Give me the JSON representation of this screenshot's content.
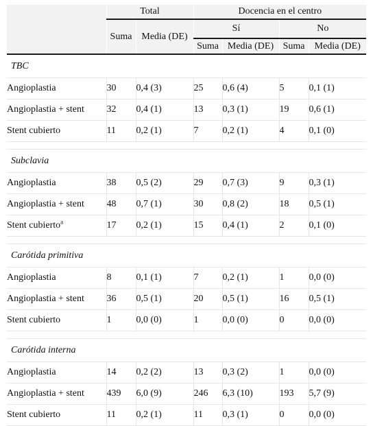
{
  "header": {
    "total": "Total",
    "docencia": "Docencia en el centro",
    "si": "Sí",
    "no": "No",
    "suma": "Suma",
    "media": "Media (DE)"
  },
  "sections": [
    {
      "title": "TBC",
      "rows": [
        {
          "label": "Angioplastia",
          "label_sup": "",
          "total_suma": "30",
          "total_media": "0,4 (3)",
          "si_suma": "25",
          "si_media": "0,6 (4)",
          "no_suma": "5",
          "no_media": "0,1 (1)"
        },
        {
          "label": "Angioplastia + stent",
          "label_sup": "",
          "total_suma": "32",
          "total_media": "0,4 (1)",
          "si_suma": "13",
          "si_media": "0,3 (1)",
          "no_suma": "19",
          "no_media": "0,6 (1)"
        },
        {
          "label": "Stent cubierto",
          "label_sup": "",
          "total_suma": "11",
          "total_media": "0,2 (1)",
          "si_suma": "7",
          "si_media": "0,2 (1)",
          "no_suma": "4",
          "no_media": "0,1 (0)"
        }
      ]
    },
    {
      "title": "Subclavia",
      "rows": [
        {
          "label": "Angioplastia",
          "label_sup": "",
          "total_suma": "38",
          "total_media": "0,5 (2)",
          "si_suma": "29",
          "si_media": "0,7 (3)",
          "no_suma": "9",
          "no_media": "0,3 (1)"
        },
        {
          "label": "Angioplastia + stent",
          "label_sup": "",
          "total_suma": "48",
          "total_media": "0,7 (1)",
          "si_suma": "30",
          "si_media": "0,8 (2)",
          "no_suma": "18",
          "no_media": "0,5 (1)"
        },
        {
          "label": "Stent cubierto",
          "label_sup": "a",
          "total_suma": "17",
          "total_media": "0,2 (1)",
          "si_suma": "15",
          "si_media": "0,4 (1)",
          "no_suma": "2",
          "no_media": "0,1 (0)"
        }
      ]
    },
    {
      "title": "Carótida primitiva",
      "rows": [
        {
          "label": "Angioplastia",
          "label_sup": "",
          "total_suma": "8",
          "total_media": "0,1 (1)",
          "si_suma": "7",
          "si_media": "0,2 (1)",
          "no_suma": "1",
          "no_media": "0,0 (0)"
        },
        {
          "label": "Angioplastia + stent",
          "label_sup": "",
          "total_suma": "36",
          "total_media": "0,5 (1)",
          "si_suma": "20",
          "si_media": "0,5 (1)",
          "no_suma": "16",
          "no_media": "0,5 (1)"
        },
        {
          "label": "Stent cubierto",
          "label_sup": "",
          "total_suma": "1",
          "total_media": "0,0 (0)",
          "si_suma": "1",
          "si_media": "0,0 (0)",
          "no_suma": "0",
          "no_media": "0,0 (0)"
        }
      ]
    },
    {
      "title": "Carótida interna",
      "rows": [
        {
          "label": "Angioplastia",
          "label_sup": "",
          "total_suma": "14",
          "total_media": "0,2 (2)",
          "si_suma": "13",
          "si_media": "0,3 (2)",
          "no_suma": "1",
          "no_media": "0,0 (0)"
        },
        {
          "label": "Angioplastia + stent",
          "label_sup": "",
          "total_suma": "439",
          "total_media": "6,0 (9)",
          "si_suma": "246",
          "si_media": "6,3 (10)",
          "no_suma": "193",
          "no_media": "5,7 (9)"
        },
        {
          "label": "Stent cubierto",
          "label_sup": "",
          "total_suma": "11",
          "total_media": "0,2 (1)",
          "si_suma": "11",
          "si_media": "0,3 (1)",
          "no_suma": "0",
          "no_media": "0,0 (0)"
        }
      ]
    }
  ]
}
